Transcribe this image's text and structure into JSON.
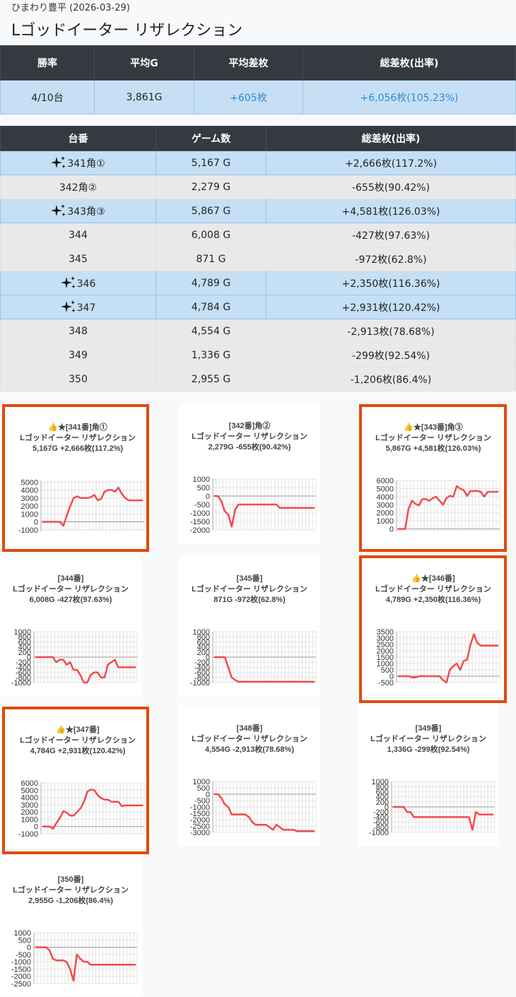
{
  "header": {
    "subtitle": "ひまわり豊平 (2026-03-29)",
    "title": "Lゴッドイーター リザレクション"
  },
  "summary": {
    "headers": [
      "勝率",
      "平均G",
      "平均差枚",
      "総差枚(出率)"
    ],
    "values": [
      "4/10台",
      "3,861G",
      "+605枚",
      "+6,056枚(105.23%)"
    ]
  },
  "machines": {
    "headers": [
      "台番",
      "ゲーム数",
      "総差枚(出率)"
    ],
    "rows": [
      {
        "name": "341角①",
        "games": "5,167 G",
        "diff": "+2,666枚(117.2%)",
        "highlight": true
      },
      {
        "name": "342角②",
        "games": "2,279 G",
        "diff": "-655枚(90.42%)",
        "highlight": false
      },
      {
        "name": "343角③",
        "games": "5,867 G",
        "diff": "+4,581枚(126.03%)",
        "highlight": true
      },
      {
        "name": "344",
        "games": "6,008 G",
        "diff": "-427枚(97.63%)",
        "highlight": false
      },
      {
        "name": "345",
        "games": "871 G",
        "diff": "-972枚(62.8%)",
        "highlight": false
      },
      {
        "name": "346",
        "games": "4,789 G",
        "diff": "+2,350枚(116.36%)",
        "highlight": true
      },
      {
        "name": "347",
        "games": "4,784 G",
        "diff": "+2,931枚(120.42%)",
        "highlight": true
      },
      {
        "name": "348",
        "games": "4,554 G",
        "diff": "-2,913枚(78.68%)",
        "highlight": false
      },
      {
        "name": "349",
        "games": "1,336 G",
        "diff": "-299枚(92.54%)",
        "highlight": false
      },
      {
        "name": "350",
        "games": "2,955 G",
        "diff": "-1,206枚(86.4%)",
        "highlight": false
      }
    ]
  },
  "colors": {
    "line": "#f24b4b",
    "frame": "#e04a0c",
    "highlight_row": "#c5dff5",
    "header_bg": "#343a40"
  },
  "chart_data": [
    {
      "type": "line",
      "highlight": true,
      "title_lines": [
        "👍★[341番]角①",
        "Lゴッドイーター リザレクション",
        "5,167G +2,666枚(117.2%)"
      ],
      "yticks": [
        -1000,
        0,
        1000,
        2000,
        3000,
        4000,
        5000
      ],
      "ylim": [
        -1200,
        5200
      ],
      "values": [
        0,
        0,
        0,
        0,
        0,
        0,
        -500,
        800,
        2000,
        3000,
        3200,
        3000,
        3000,
        3000,
        3100,
        3400,
        2700,
        2900,
        3800,
        4000,
        4000,
        3800,
        4300,
        3500,
        3000,
        2700,
        2700,
        2700,
        2700,
        2700
      ]
    },
    {
      "type": "line",
      "highlight": false,
      "title_lines": [
        "[342番]角②",
        "Lゴッドイーター リザレクション",
        "2,279G -655枚(90.42%)"
      ],
      "yticks": [
        -2000,
        -1500,
        -1000,
        -500,
        0,
        500,
        1000
      ],
      "ylim": [
        -2000,
        1000
      ],
      "values": [
        0,
        0,
        -300,
        -900,
        -1100,
        -1800,
        -800,
        -500,
        -500,
        -500,
        -500,
        -500,
        -500,
        -500,
        -500,
        -500,
        -500,
        -500,
        -500,
        -700,
        -700,
        -700,
        -700,
        -700,
        -700,
        -700,
        -700,
        -700,
        -700,
        -700
      ]
    },
    {
      "type": "line",
      "highlight": true,
      "title_lines": [
        "👍★[343番]角③",
        "Lゴッドイーター リザレクション",
        "5,867G +4,581枚(126.03%)"
      ],
      "yticks": [
        0,
        1000,
        2000,
        3000,
        4000,
        5000,
        6000
      ],
      "ylim": [
        -300,
        6000
      ],
      "values": [
        0,
        0,
        0,
        2500,
        3500,
        3100,
        2900,
        3700,
        3700,
        3500,
        3800,
        4000,
        3500,
        3000,
        3800,
        4100,
        4000,
        5300,
        5000,
        4800,
        4100,
        4700,
        4700,
        4700,
        4600,
        4000,
        4600,
        4600,
        4600,
        4600
      ]
    },
    {
      "type": "line",
      "highlight": false,
      "title_lines": [
        "[344番]",
        "Lゴッドイーター リザレクション",
        "6,008G -427枚(97.63%)"
      ],
      "yticks": [
        -1000,
        -800,
        -600,
        -400,
        -200,
        0,
        200,
        400,
        600,
        800,
        1000
      ],
      "ylim": [
        -1000,
        1000
      ],
      "values": [
        0,
        0,
        0,
        0,
        0,
        0,
        -200,
        -100,
        -100,
        -300,
        -200,
        -500,
        -500,
        -700,
        -1000,
        -1000,
        -700,
        -600,
        -600,
        -800,
        -800,
        -300,
        -200,
        -100,
        -400,
        -400,
        -400,
        -400,
        -400,
        -400
      ]
    },
    {
      "type": "line",
      "highlight": false,
      "title_lines": [
        "[345番]",
        "Lゴッドイーター リザレクション",
        "871G -972枚(62.8%)"
      ],
      "yticks": [
        -1000,
        -800,
        -600,
        -400,
        -200,
        0,
        200,
        400,
        600,
        800,
        1000
      ],
      "ylim": [
        -1000,
        1000
      ],
      "values": [
        0,
        0,
        0,
        0,
        -400,
        -800,
        -900,
        -970,
        -970,
        -970,
        -970,
        -970,
        -970,
        -970,
        -970,
        -970,
        -970,
        -970,
        -970,
        -970,
        -970,
        -970,
        -970,
        -970,
        -970,
        -970,
        -970,
        -970,
        -970,
        -970
      ]
    },
    {
      "type": "line",
      "highlight": true,
      "title_lines": [
        "👍★[346番]",
        "Lゴッドイーター リザレクション",
        "4,789G +2,350枚(116.36%)"
      ],
      "yticks": [
        -500,
        0,
        500,
        1000,
        1500,
        2000,
        2500,
        3000,
        3500
      ],
      "ylim": [
        -500,
        3500
      ],
      "values": [
        0,
        0,
        0,
        0,
        -100,
        -100,
        0,
        0,
        0,
        0,
        0,
        0,
        0,
        -300,
        -500,
        500,
        800,
        1000,
        500,
        1200,
        1300,
        2500,
        3300,
        2600,
        2400,
        2400,
        2400,
        2400,
        2400,
        2400
      ]
    },
    {
      "type": "line",
      "highlight": true,
      "title_lines": [
        "👍★[347番]",
        "Lゴッドイーター リザレクション",
        "4,784G +2,931枚(120.42%)"
      ],
      "yticks": [
        -1000,
        0,
        1000,
        2000,
        3000,
        4000,
        5000,
        6000
      ],
      "ylim": [
        -1000,
        6000
      ],
      "values": [
        0,
        0,
        0,
        -300,
        500,
        1200,
        2100,
        1900,
        1500,
        1500,
        2000,
        2500,
        3400,
        4800,
        5100,
        5000,
        4300,
        3900,
        3700,
        3700,
        3400,
        3400,
        3400,
        2800,
        2900,
        2900,
        2900,
        2900,
        2900,
        2900
      ]
    },
    {
      "type": "line",
      "highlight": false,
      "title_lines": [
        "[348番]",
        "Lゴッドイーター リザレクション",
        "4,554G -2,913枚(78.68%)"
      ],
      "yticks": [
        -3000,
        -2500,
        -2000,
        -1500,
        -1000,
        -500,
        0,
        500,
        1000
      ],
      "ylim": [
        -3000,
        1000
      ],
      "values": [
        0,
        0,
        -300,
        -800,
        -1000,
        -1600,
        -1600,
        -1600,
        -1600,
        -1600,
        -1800,
        -2200,
        -2400,
        -2400,
        -2400,
        -2400,
        -2600,
        -2800,
        -2400,
        -2600,
        -2800,
        -2800,
        -2800,
        -2800,
        -2900,
        -2900,
        -2900,
        -2900,
        -2900,
        -2900
      ]
    },
    {
      "type": "line",
      "highlight": false,
      "title_lines": [
        "[349番]",
        "Lゴッドイーター リザレクション",
        "1,336G -299枚(92.54%)"
      ],
      "yticks": [
        -1000,
        -800,
        -600,
        -400,
        -200,
        0,
        200,
        400,
        600,
        800,
        1000
      ],
      "ylim": [
        -1000,
        1000
      ],
      "values": [
        0,
        0,
        0,
        0,
        -200,
        -200,
        -400,
        -400,
        -400,
        -400,
        -400,
        -400,
        -400,
        -400,
        -400,
        -400,
        -400,
        -400,
        -400,
        -400,
        -400,
        -400,
        -400,
        -900,
        -200,
        -300,
        -300,
        -300,
        -300,
        -300
      ]
    },
    {
      "type": "line",
      "highlight": false,
      "title_lines": [
        "[350番]",
        "Lゴッドイーター リザレクション",
        "2,955G -1,206枚(86.4%)"
      ],
      "yticks": [
        -2500,
        -2000,
        -1500,
        -1000,
        -500,
        0,
        500,
        1000
      ],
      "ylim": [
        -2500,
        1000
      ],
      "values": [
        0,
        0,
        0,
        0,
        -200,
        -800,
        -900,
        -900,
        -900,
        -1000,
        -1500,
        -2300,
        -500,
        -800,
        -1000,
        -1000,
        -1200,
        -1200,
        -1200,
        -1200,
        -1200,
        -1200,
        -1200,
        -1200,
        -1200,
        -1200,
        -1200,
        -1200,
        -1200,
        -1200
      ]
    }
  ]
}
